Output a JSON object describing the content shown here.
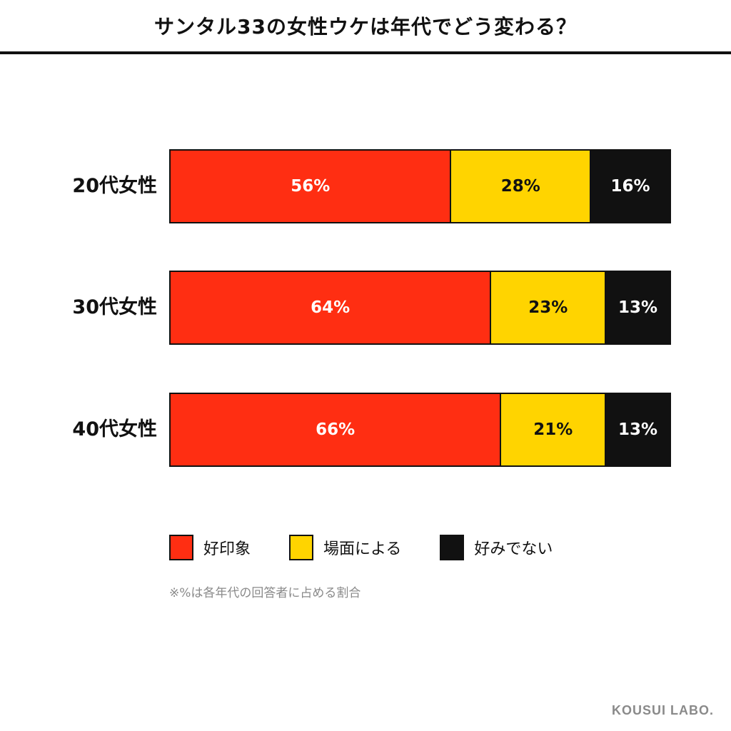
{
  "title": "サンタル33の女性ウケは年代でどう変わる？",
  "colors": {
    "good": "#ff2e12",
    "depends": "#ffd400",
    "dislike": "#111111"
  },
  "chart_data": {
    "type": "bar",
    "orientation": "horizontal",
    "stacked": "100%",
    "categories": [
      "20代女性",
      "30代女性",
      "40代女性"
    ],
    "series": [
      {
        "name": "好印象",
        "values": [
          56,
          64,
          66
        ],
        "color": "#ff2e12"
      },
      {
        "name": "場面による",
        "values": [
          28,
          23,
          21
        ],
        "color": "#ffd400"
      },
      {
        "name": "好みでない",
        "values": [
          16,
          13,
          13
        ],
        "color": "#111111"
      }
    ],
    "data_labels": [
      [
        "56%",
        "28%",
        "16%"
      ],
      [
        "64%",
        "23%",
        "13%"
      ],
      [
        "66%",
        "21%",
        "13%"
      ]
    ],
    "xlim": [
      0,
      100
    ],
    "legend_position": "bottom"
  },
  "legend": [
    {
      "label": "好印象",
      "color": "#ff2e12"
    },
    {
      "label": "場面による",
      "color": "#ffd400"
    },
    {
      "label": "好みでない",
      "color": "#111111"
    }
  ],
  "note": "※%は各年代の回答者に占める割合",
  "brand": "KOUSUI LABO."
}
